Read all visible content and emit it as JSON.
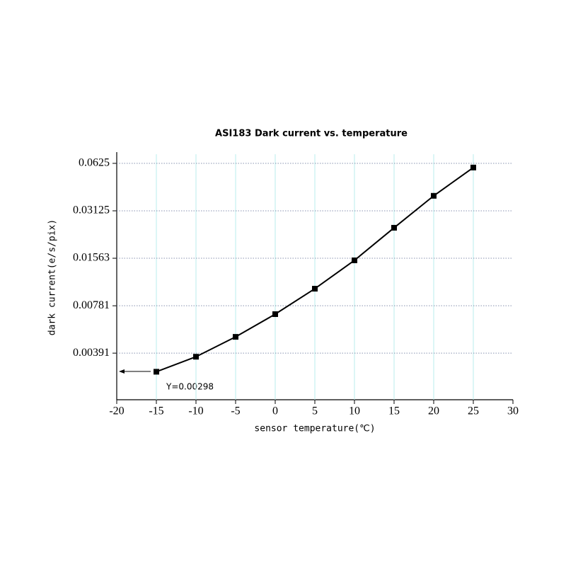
{
  "chart_data": {
    "type": "line",
    "title": "ASI183 Dark current vs. temperature",
    "xlabel": "sensor temperature(℃)",
    "ylabel": "dark current(e/s/pix)",
    "x": [
      -15,
      -10,
      -5,
      0,
      5,
      10,
      15,
      20,
      25
    ],
    "series": [
      {
        "name": "dark current",
        "color": "#000000",
        "values": [
          0.00298,
          0.00371,
          0.00496,
          0.00691,
          0.01002,
          0.01516,
          0.0244,
          0.0389,
          0.0588
        ]
      }
    ],
    "xlim": [
      -20,
      30
    ],
    "xticks": [
      -20,
      -15,
      -10,
      -5,
      0,
      5,
      10,
      15,
      20,
      25,
      30
    ],
    "ylim": [
      0.00198,
      0.0714
    ],
    "yticks": [
      0.00391,
      0.00781,
      0.01563,
      0.03125,
      0.0625
    ],
    "yscale": "log",
    "grid": true,
    "annotation": "Y=0.00298"
  }
}
